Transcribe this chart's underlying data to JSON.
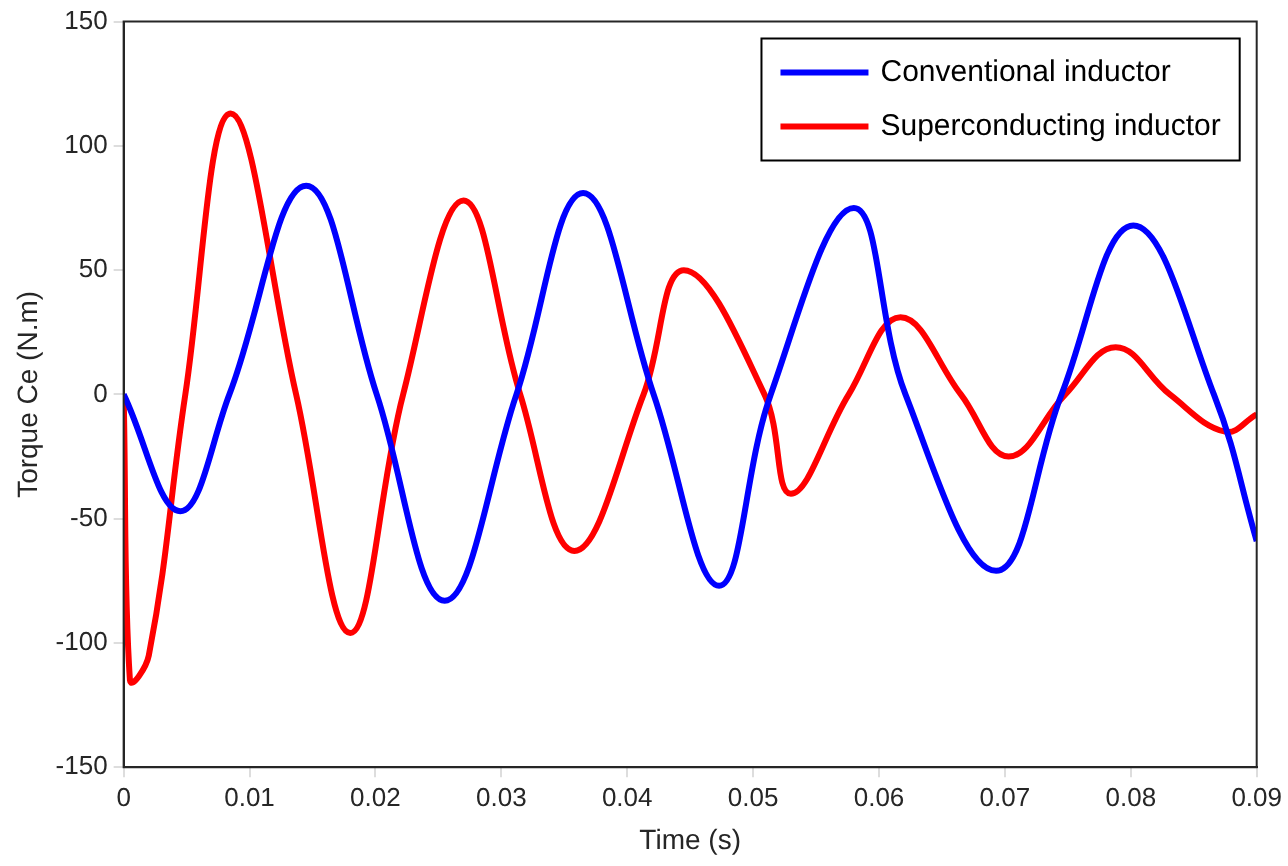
{
  "chart_data": {
    "type": "line",
    "xlabel": "Time (s)",
    "ylabel": "Torque Ce (N.m)",
    "xlim": [
      0,
      0.09
    ],
    "xticks": [
      0,
      0.01,
      0.02,
      0.03,
      0.04,
      0.05,
      0.06,
      0.07,
      0.08,
      0.09
    ],
    "ylim": [
      -150,
      150
    ],
    "yticks": [
      -150,
      -100,
      -50,
      0,
      50,
      100,
      150
    ],
    "grid": false,
    "legend": "top right",
    "marker": "none",
    "line_style": "solid",
    "series": [
      {
        "name": "Conventional inductor",
        "color": "#0000ff",
        "x": [
          0,
          0.0045,
          0.0084,
          0.0145,
          0.0201,
          0.0255,
          0.0312,
          0.0365,
          0.0421,
          0.0473,
          0.0514,
          0.058,
          0.0621,
          0.0693,
          0.0745,
          0.0802,
          0.0866,
          0.09
        ],
        "values": [
          0,
          -47,
          0,
          84,
          0,
          -83,
          0,
          81,
          0,
          -77,
          0,
          75,
          0,
          -71,
          0,
          68,
          0,
          -59
        ]
      },
      {
        "name": "Superconducting inductor",
        "color": "#ff0000",
        "x": [
          0,
          0.0005,
          0.002,
          0.0049,
          0.0085,
          0.0137,
          0.018,
          0.0222,
          0.027,
          0.0315,
          0.0358,
          0.0413,
          0.0445,
          0.0509,
          0.053,
          0.0576,
          0.0617,
          0.0665,
          0.0703,
          0.0748,
          0.0788,
          0.0831,
          0.0875,
          0.09
        ],
        "values": [
          0,
          -115,
          -105,
          0,
          113,
          0,
          -96,
          0,
          78,
          0,
          -63,
          0,
          50,
          0,
          -40,
          0,
          31,
          0,
          -25,
          0,
          19,
          0,
          -15,
          -8
        ]
      }
    ]
  }
}
